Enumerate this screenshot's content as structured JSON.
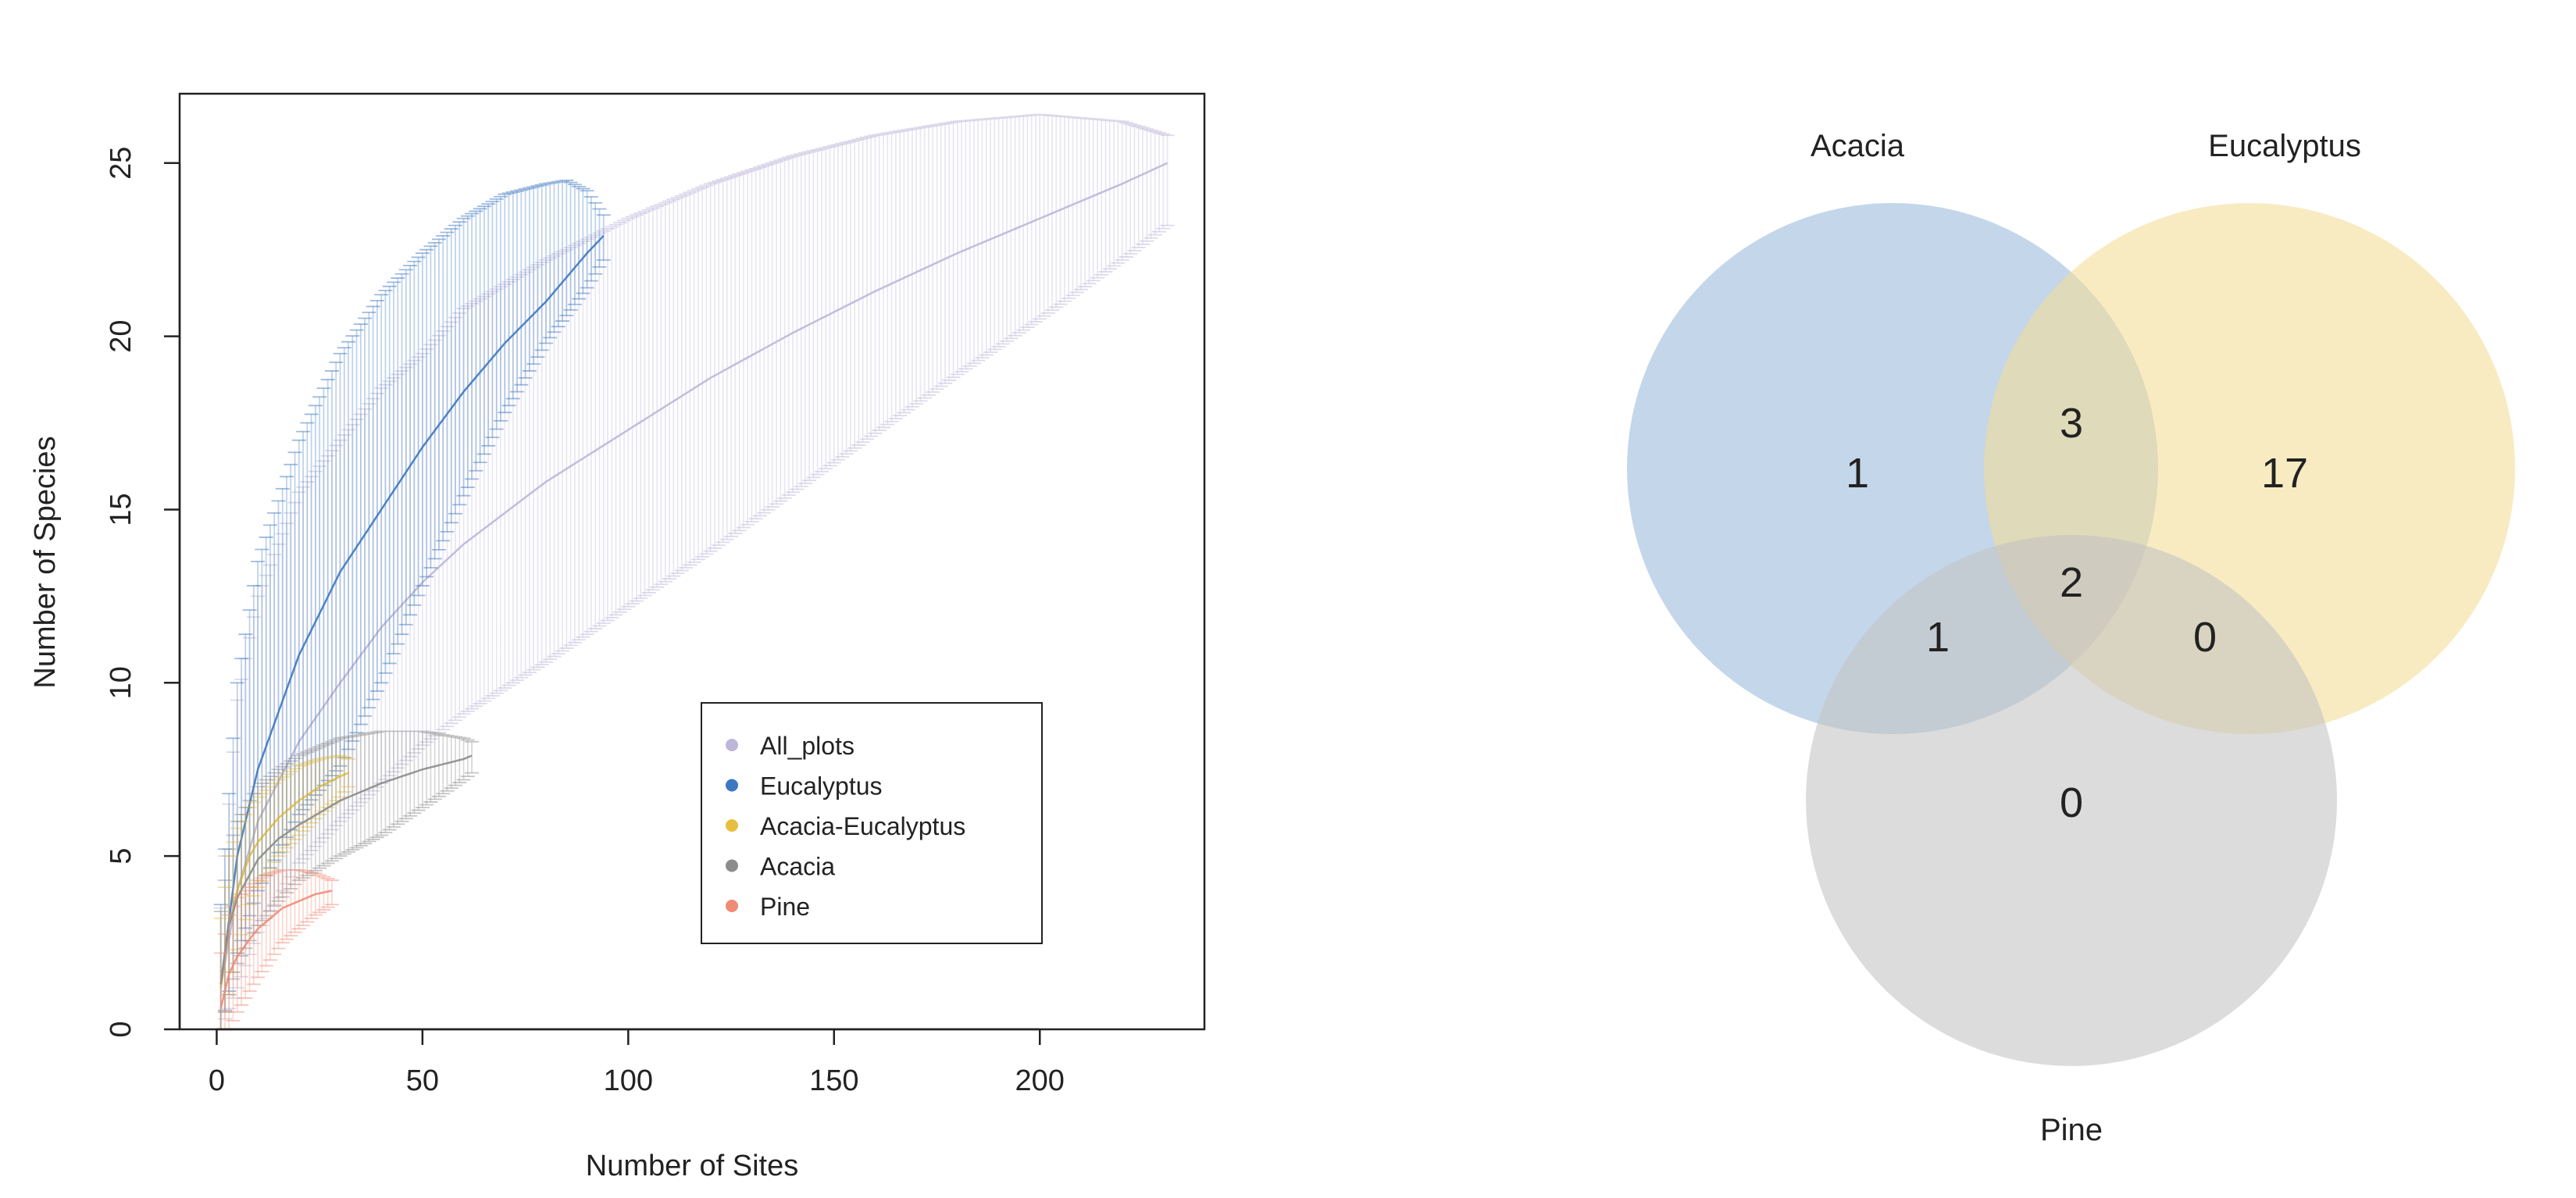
{
  "chart_data": [
    {
      "type": "line",
      "subtype": "species-accumulation curves with error bars",
      "xlabel": "Number of Sites",
      "ylabel": "Number of Species",
      "xlim": [
        -9,
        240
      ],
      "ylim": [
        0,
        27
      ],
      "x_ticks": [
        0,
        50,
        100,
        150,
        200
      ],
      "y_ticks": [
        0,
        5,
        10,
        15,
        20,
        25
      ],
      "grid": false,
      "legend_position": "bottom-right",
      "series": [
        {
          "name": "All_plots",
          "color": "#bdb6d8",
          "x": [
            1,
            5,
            10,
            20,
            30,
            40,
            50,
            60,
            80,
            100,
            120,
            140,
            160,
            180,
            200,
            220,
            231
          ],
          "mean": [
            1.2,
            4.0,
            6.0,
            8.3,
            10.0,
            11.6,
            12.9,
            14.0,
            15.8,
            17.3,
            18.8,
            20.1,
            21.3,
            22.4,
            23.4,
            24.4,
            25.0
          ],
          "upper": [
            3.5,
            9.5,
            12.5,
            15.5,
            17.0,
            18.5,
            19.5,
            20.8,
            22.2,
            23.4,
            24.4,
            25.2,
            25.8,
            26.2,
            26.4,
            26.2,
            25.8
          ],
          "lower": [
            0.0,
            1.2,
            2.8,
            4.8,
            6.0,
            7.1,
            8.2,
            9.1,
            10.6,
            12.2,
            13.8,
            15.5,
            17.2,
            18.9,
            20.5,
            22.2,
            23.2
          ]
        },
        {
          "name": "Eucalyptus",
          "color": "#3d78c0",
          "x": [
            1,
            5,
            10,
            20,
            30,
            40,
            50,
            60,
            70,
            80,
            85,
            90,
            94
          ],
          "mean": [
            1.3,
            5.0,
            7.5,
            10.8,
            13.2,
            15.0,
            16.8,
            18.4,
            19.8,
            21.0,
            21.7,
            22.4,
            22.9
          ],
          "upper": [
            3.6,
            10.0,
            13.5,
            17.0,
            19.5,
            21.2,
            22.4,
            23.4,
            24.1,
            24.4,
            24.5,
            24.2,
            23.5
          ],
          "lower": [
            0.0,
            2.2,
            4.0,
            6.2,
            7.6,
            10.0,
            12.8,
            15.4,
            17.8,
            19.8,
            20.6,
            21.4,
            22.2
          ]
        },
        {
          "name": "Acacia-Eucalyptus",
          "color": "#e7bf40",
          "x": [
            1,
            3,
            5,
            8,
            10,
            15,
            20,
            25,
            30,
            32
          ],
          "mean": [
            1.2,
            3.0,
            4.0,
            5.0,
            5.4,
            6.1,
            6.6,
            7.0,
            7.3,
            7.4
          ],
          "upper": [
            3.2,
            5.0,
            5.8,
            6.4,
            6.7,
            7.2,
            7.6,
            7.8,
            7.9,
            7.8
          ],
          "lower": [
            0.0,
            1.0,
            2.3,
            3.6,
            4.1,
            5.0,
            5.6,
            6.2,
            6.7,
            7.0
          ]
        },
        {
          "name": "Acacia",
          "color": "#8c8c8c",
          "x": [
            1,
            3,
            5,
            10,
            15,
            20,
            30,
            40,
            50,
            60,
            62
          ],
          "mean": [
            1.3,
            3.0,
            3.8,
            4.9,
            5.5,
            5.9,
            6.6,
            7.1,
            7.5,
            7.8,
            7.9
          ],
          "upper": [
            3.4,
            5.2,
            6.0,
            7.0,
            7.5,
            7.9,
            8.4,
            8.6,
            8.6,
            8.4,
            8.3
          ],
          "lower": [
            0.0,
            1.0,
            1.9,
            3.0,
            3.7,
            4.3,
            5.0,
            5.6,
            6.4,
            7.2,
            7.4
          ]
        },
        {
          "name": "Pine",
          "color": "#ef8b76",
          "x": [
            1,
            3,
            5,
            8,
            10,
            13,
            16,
            20,
            24,
            28
          ],
          "mean": [
            0.6,
            1.6,
            2.1,
            2.6,
            2.9,
            3.2,
            3.5,
            3.7,
            3.9,
            4.0
          ],
          "upper": [
            2.2,
            3.3,
            3.8,
            4.1,
            4.3,
            4.5,
            4.6,
            4.6,
            4.5,
            4.3
          ],
          "lower": [
            0.0,
            0.0,
            0.5,
            1.1,
            1.5,
            2.0,
            2.5,
            2.9,
            3.3,
            3.6
          ]
        }
      ]
    },
    {
      "type": "venn",
      "sets": [
        {
          "name": "Acacia",
          "color": "#9ab8db"
        },
        {
          "name": "Eucalyptus",
          "color": "#f3dc96"
        },
        {
          "name": "Pine",
          "color": "#c2c2c2"
        }
      ],
      "regions": {
        "acacia_only": "1",
        "eucalyptus_only": "17",
        "acacia_eucalyptus": "3",
        "all_three": "2",
        "acacia_pine": "1",
        "eucalyptus_pine": "0",
        "pine_only": "0"
      }
    }
  ]
}
